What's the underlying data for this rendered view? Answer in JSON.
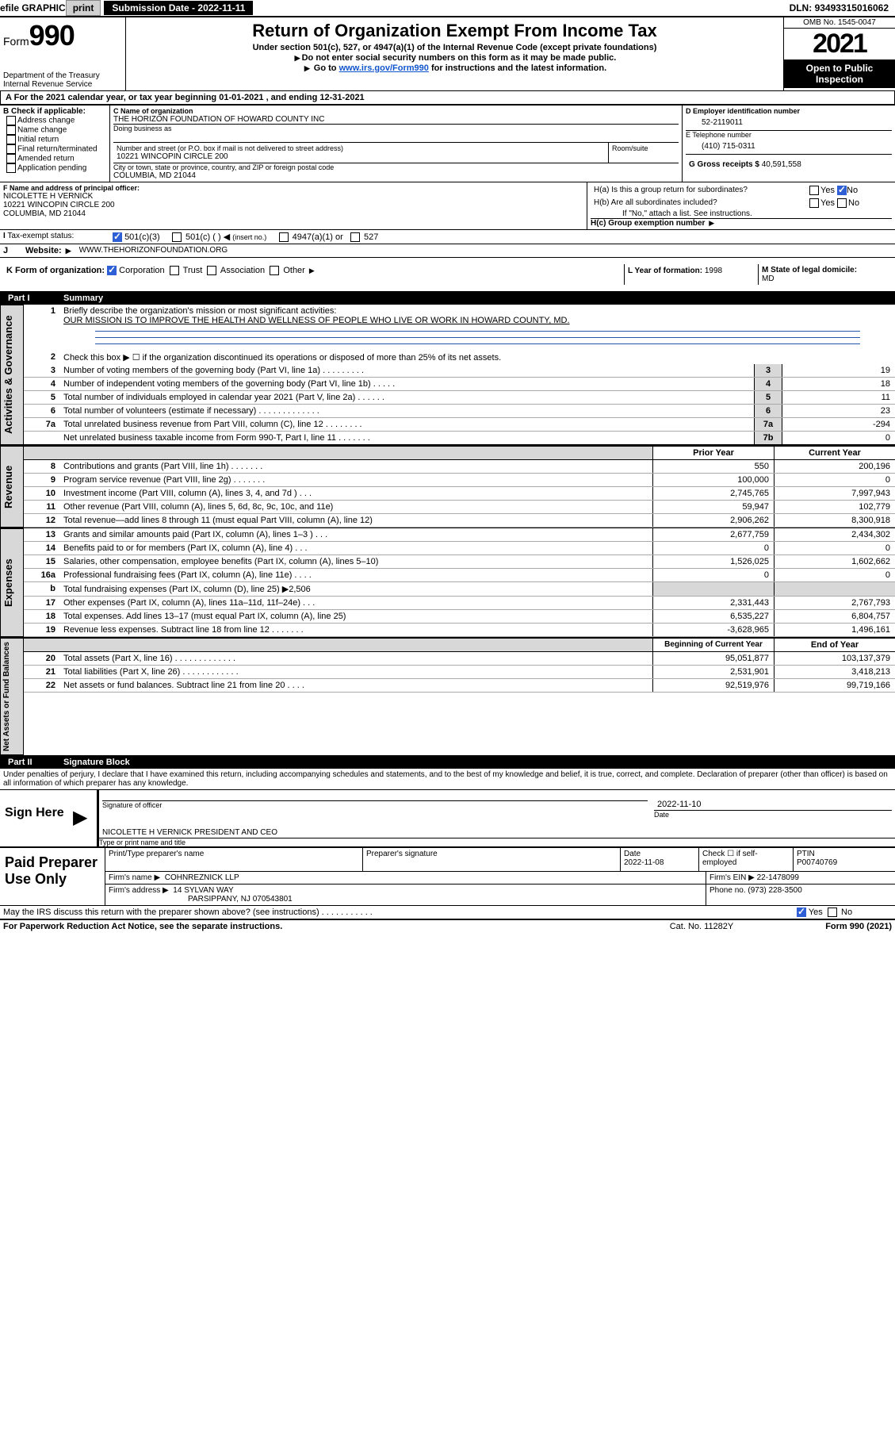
{
  "topbar": {
    "efile": "efile GRAPHIC",
    "print": "print",
    "submission_label": "Submission Date - ",
    "submission_date": "2022-11-11",
    "dln_label": "DLN: ",
    "dln": "93493315016062"
  },
  "header": {
    "form_label": "Form",
    "form_number": "990",
    "title": "Return of Organization Exempt From Income Tax",
    "subtitle1": "Under section 501(c), 527, or 4947(a)(1) of the Internal Revenue Code (except private foundations)",
    "subtitle2": "Do not enter social security numbers on this form as it may be made public.",
    "subtitle3_pre": "Go to ",
    "subtitle3_link": "www.irs.gov/Form990",
    "subtitle3_post": " for instructions and the latest information.",
    "dept": "Department of the Treasury\nInternal Revenue Service",
    "omb": "OMB No. 1545-0047",
    "year": "2021",
    "open_public": "Open to Public Inspection",
    "year_line_pre": "For the 2021 calendar year, or tax year beginning ",
    "year_begin": "01-01-2021",
    "year_mid": " , and ending ",
    "year_end": "12-31-2021"
  },
  "section_b": {
    "label": "B Check if applicable:",
    "address_change": "Address change",
    "name_change": "Name change",
    "initial_return": "Initial return",
    "final_return": "Final return/terminated",
    "amended_return": "Amended return",
    "application_pending": "Application pending"
  },
  "section_c": {
    "name_label": "C Name of organization",
    "org_name": "THE HORIZON FOUNDATION OF HOWARD COUNTY INC",
    "dba_label": "Doing business as",
    "street_label": "Number and street (or P.O. box if mail is not delivered to street address)",
    "room_label": "Room/suite",
    "street": "10221 WINCOPIN CIRCLE 200",
    "city_label": "City or town, state or province, country, and ZIP or foreign postal code",
    "city": "COLUMBIA, MD  21044"
  },
  "section_d": {
    "ein_label": "D Employer identification number",
    "ein": "52-2119011"
  },
  "section_e": {
    "phone_label": "E Telephone number",
    "phone": "(410) 715-0311"
  },
  "section_g": {
    "label": "G Gross receipts $ ",
    "value": "40,591,558"
  },
  "section_f": {
    "label": "F Name and address of principal officer:",
    "name": "NICOLETTE H VERNICK",
    "street": "10221 WINCOPIN CIRCLE 200",
    "city": "COLUMBIA, MD  21044"
  },
  "section_h": {
    "ha_label": "H(a)  Is this a group return for subordinates?",
    "yes": "Yes",
    "no": "No",
    "hb_label": "H(b)  Are all subordinates included?",
    "hb_note": "If \"No,\" attach a list. See instructions.",
    "hc_label": "H(c)  Group exemption number"
  },
  "section_i": {
    "label": "Tax-exempt status:",
    "opt1": "501(c)(3)",
    "opt2": "501(c) (   )",
    "opt2_note": "(insert no.)",
    "opt3": "4947(a)(1) or",
    "opt4": "527"
  },
  "section_j": {
    "label": "Website:",
    "value": "WWW.THEHORIZONFOUNDATION.ORG"
  },
  "section_k": {
    "label": "K Form of organization:",
    "corp": "Corporation",
    "trust": "Trust",
    "assoc": "Association",
    "other": "Other"
  },
  "section_l": {
    "label": "L Year of formation: ",
    "value": "1998"
  },
  "section_m": {
    "label": "M State of legal domicile:",
    "value": "MD"
  },
  "part1": {
    "label": "Part I",
    "title": "Summary"
  },
  "summary": {
    "q1_label": "Briefly describe the organization's mission or most significant activities:",
    "q1_mission": "OUR MISSION IS TO IMPROVE THE HEALTH AND WELLNESS OF PEOPLE WHO LIVE OR WORK IN HOWARD COUNTY, MD.",
    "q2_label": "Check this box ▶ ☐  if the organization discontinued its operations or disposed of more than 25% of its net assets.",
    "q3_label": "Number of voting members of the governing body (Part VI, line 1a)   .    .    .    .    .    .    .    .    .",
    "q3_box": "3",
    "q3_val": "19",
    "q4_label": "Number of independent voting members of the governing body (Part VI, line 1b)   .    .    .    .    .",
    "q4_box": "4",
    "q4_val": "18",
    "q5_label": "Total number of individuals employed in calendar year 2021 (Part V, line 2a)   .    .    .    .    .    .",
    "q5_box": "5",
    "q5_val": "11",
    "q6_label": "Total number of volunteers (estimate if necessary)   .    .    .    .    .    .    .    .    .    .    .    .    .",
    "q6_box": "6",
    "q6_val": "23",
    "q7a_label": "Total unrelated business revenue from Part VIII, column (C), line 12   .    .    .    .    .    .    .    .",
    "q7a_box": "7a",
    "q7a_val": "-294",
    "q7b_label": "Net unrelated business taxable income from Form 990-T, Part I, line 11   .    .    .    .    .    .    .",
    "q7b_box": "7b",
    "q7b_val": "0",
    "prior_label": "Prior Year",
    "current_label": "Current Year"
  },
  "revenue_rows": [
    {
      "n": "8",
      "label": "Contributions and grants (Part VIII, line 1h)   .    .    .    .    .    .    .",
      "prior": "550",
      "curr": "200,196"
    },
    {
      "n": "9",
      "label": "Program service revenue (Part VIII, line 2g)   .    .    .    .    .    .    .",
      "prior": "100,000",
      "curr": "0"
    },
    {
      "n": "10",
      "label": "Investment income (Part VIII, column (A), lines 3, 4, and 7d )   .    .    .",
      "prior": "2,745,765",
      "curr": "7,997,943"
    },
    {
      "n": "11",
      "label": "Other revenue (Part VIII, column (A), lines 5, 6d, 8c, 9c, 10c, and 11e)",
      "prior": "59,947",
      "curr": "102,779"
    },
    {
      "n": "12",
      "label": "Total revenue—add lines 8 through 11 (must equal Part VIII, column (A), line 12)",
      "prior": "2,906,262",
      "curr": "8,300,918"
    }
  ],
  "expense_rows": [
    {
      "n": "13",
      "label": "Grants and similar amounts paid (Part IX, column (A), lines 1–3 )   .    .    .",
      "prior": "2,677,759",
      "curr": "2,434,302"
    },
    {
      "n": "14",
      "label": "Benefits paid to or for members (Part IX, column (A), line 4)   .    .    .",
      "prior": "0",
      "curr": "0"
    },
    {
      "n": "15",
      "label": "Salaries, other compensation, employee benefits (Part IX, column (A), lines 5–10)",
      "prior": "1,526,025",
      "curr": "1,602,662"
    },
    {
      "n": "16a",
      "label": "Professional fundraising fees (Part IX, column (A), line 11e)   .    .    .    .",
      "prior": "0",
      "curr": "0"
    },
    {
      "n": "b",
      "label": "Total fundraising expenses (Part IX, column (D), line 25) ▶2,506",
      "prior": "",
      "curr": ""
    },
    {
      "n": "17",
      "label": "Other expenses (Part IX, column (A), lines 11a–11d, 11f–24e)   .    .    .",
      "prior": "2,331,443",
      "curr": "2,767,793"
    },
    {
      "n": "18",
      "label": "Total expenses. Add lines 13–17 (must equal Part IX, column (A), line 25)",
      "prior": "6,535,227",
      "curr": "6,804,757"
    },
    {
      "n": "19",
      "label": "Revenue less expenses. Subtract line 18 from line 12   .    .    .    .    .    .    .",
      "prior": "-3,628,965",
      "curr": "1,496,161"
    }
  ],
  "netassets": {
    "begin_label": "Beginning of Current Year",
    "end_label": "End of Year",
    "rows": [
      {
        "n": "20",
        "label": "Total assets (Part X, line 16)   .    .    .    .    .    .    .    .    .    .    .    .    .",
        "prior": "95,051,877",
        "curr": "103,137,379"
      },
      {
        "n": "21",
        "label": "Total liabilities (Part X, line 26)   .    .    .    .    .    .    .    .    .    .    .    .",
        "prior": "2,531,901",
        "curr": "3,418,213"
      },
      {
        "n": "22",
        "label": "Net assets or fund balances. Subtract line 21 from line 20   .    .    .    .",
        "prior": "92,519,976",
        "curr": "99,719,166"
      }
    ]
  },
  "sidebars": {
    "gov": "Activities & Governance",
    "rev": "Revenue",
    "exp": "Expenses",
    "net": "Net Assets or Fund Balances"
  },
  "part2": {
    "label": "Part II",
    "title": "Signature Block",
    "penalties": "Under penalties of perjury, I declare that I have examined this return, including accompanying schedules and statements, and to the best of my knowledge and belief, it is true, correct, and complete. Declaration of preparer (other than officer) is based on all information of which preparer has any knowledge."
  },
  "sign": {
    "here": "Sign Here",
    "sig_date": "2022-11-10",
    "sig_officer_label": "Signature of officer",
    "date_label": "Date",
    "officer_name": "NICOLETTE H VERNICK  PRESIDENT AND CEO",
    "type_label": "Type or print name and title"
  },
  "paid": {
    "label": "Paid Preparer Use Only",
    "print_label": "Print/Type preparer's name",
    "prep_sig_label": "Preparer's signature",
    "date_label": "Date",
    "date": "2022-11-08",
    "check_label": "Check ☐ if self-employed",
    "ptin_label": "PTIN",
    "ptin": "P00740769",
    "firm_name_label": "Firm's name     ▶",
    "firm_name": "COHNREZNICK LLP",
    "firm_ein_label": "Firm's EIN ▶ ",
    "firm_ein": "22-1478099",
    "firm_addr_label": "Firm's address ▶",
    "firm_addr": "14 SYLVAN WAY",
    "firm_addr2": "PARSIPPANY, NJ  070543801",
    "phone_label": "Phone no. ",
    "phone": "(973) 228-3500"
  },
  "discuss": {
    "label": "May the IRS discuss this return with the preparer shown above? (see instructions)   .    .    .    .    .    .    .    .    .    .    .",
    "yes": "Yes",
    "no": "No"
  },
  "footer": {
    "notice": "For Paperwork Reduction Act Notice, see the separate instructions.",
    "cat": "Cat. No. 11282Y",
    "form": "Form 990 (2021)"
  },
  "colors": {
    "link": "#1155cc",
    "shade": "#d8d8d8",
    "check_green": "#0a8844",
    "check_blue": "#2e5fd4"
  }
}
